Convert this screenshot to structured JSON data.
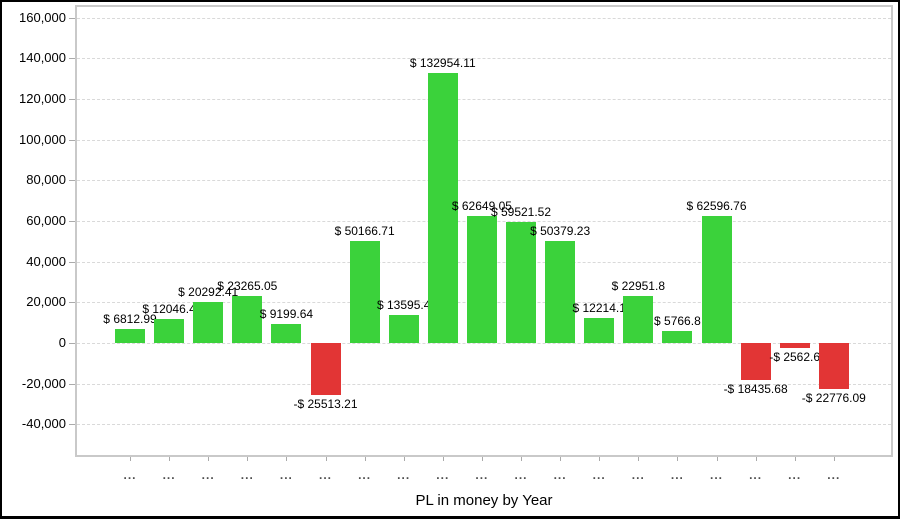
{
  "chart_data": {
    "type": "bar",
    "title": "",
    "xlabel": "PL in money by Year",
    "ylabel": "",
    "legend": "none",
    "grid": "horizontal-dashed",
    "ylim": [
      -55100,
      165300
    ],
    "yticks": {
      "values": [
        160000,
        140000,
        120000,
        100000,
        80000,
        60000,
        40000,
        20000,
        0,
        -20000,
        -40000
      ],
      "labels": [
        "160,000",
        "140,000",
        "120,000",
        "100,000",
        "80,000",
        "60,000",
        "40,000",
        "20,000",
        "0",
        "-20,000",
        "-40,000"
      ]
    },
    "categories": [
      "...",
      "...",
      "...",
      "...",
      "...",
      "...",
      "...",
      "...",
      "...",
      "...",
      "...",
      "...",
      "...",
      "...",
      "...",
      "...",
      "...",
      "...",
      "..."
    ],
    "values": [
      6812.99,
      12046.4,
      20292.41,
      23265.05,
      9199.64,
      -25513.21,
      50166.71,
      13595.4,
      132954.11,
      62649.05,
      59521.52,
      50379.23,
      12214.1,
      22951.8,
      5766.8,
      62596.76,
      -18435.68,
      -2562.6,
      -22776.09
    ],
    "bar_labels": [
      "$ 6812.99",
      "$ 12046.4",
      "$ 20292.41",
      "$ 23265.05",
      "$ 9199.64",
      "-$ 25513.21",
      "$ 50166.71",
      "$ 13595.4",
      "$ 132954.11",
      "$ 62649.05",
      "$ 59521.52",
      "$ 50379.23",
      "$ 12214.1",
      "$ 22951.8",
      "$ 5766.8",
      "$ 62596.76",
      "-$ 18435.68",
      "-$ 2562.6",
      "-$ 22776.09"
    ],
    "colors": {
      "positive": "#3bd23b",
      "negative": "#e23535",
      "grid": "#d9d9d9",
      "plot_border": "#c9c9c9",
      "tick": "#aaaaaa",
      "value_label_text": "#000000",
      "x_tick_label_text": "#4d4d4d"
    }
  }
}
